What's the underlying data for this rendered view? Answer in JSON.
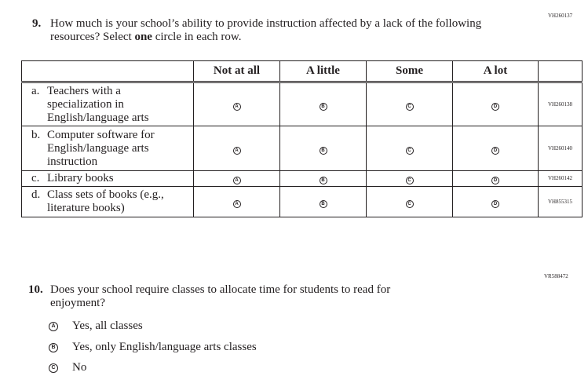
{
  "q9": {
    "code": "VH260137",
    "number": "9.",
    "text_before": "How much is your school’s ability to provide instruction affected by a lack of the following resources? Select ",
    "text_bold": "one",
    "text_after": " circle in each row.",
    "columns": [
      "Not at all",
      "A little",
      "Some",
      "A lot"
    ],
    "bubble_letters": [
      "A",
      "B",
      "C",
      "D"
    ],
    "rows": [
      {
        "letter": "a.",
        "label": "Teachers with a specialization in English/language arts",
        "code": "VH260138"
      },
      {
        "letter": "b.",
        "label": "Computer software for English/language arts instruction",
        "code": "VH260140"
      },
      {
        "letter": "c.",
        "label": "Library books",
        "code": "VH260142"
      },
      {
        "letter": "d.",
        "label": "Class sets of books (e.g., literature books)",
        "code": "VH855315"
      }
    ]
  },
  "q10": {
    "code": "VR588472",
    "number": "10.",
    "text": "Does your school require classes to allocate time for students to read for enjoyment?",
    "options": [
      {
        "letter": "A",
        "label": "Yes, all classes"
      },
      {
        "letter": "B",
        "label": "Yes, only English/language arts classes"
      },
      {
        "letter": "C",
        "label": "No"
      }
    ]
  }
}
